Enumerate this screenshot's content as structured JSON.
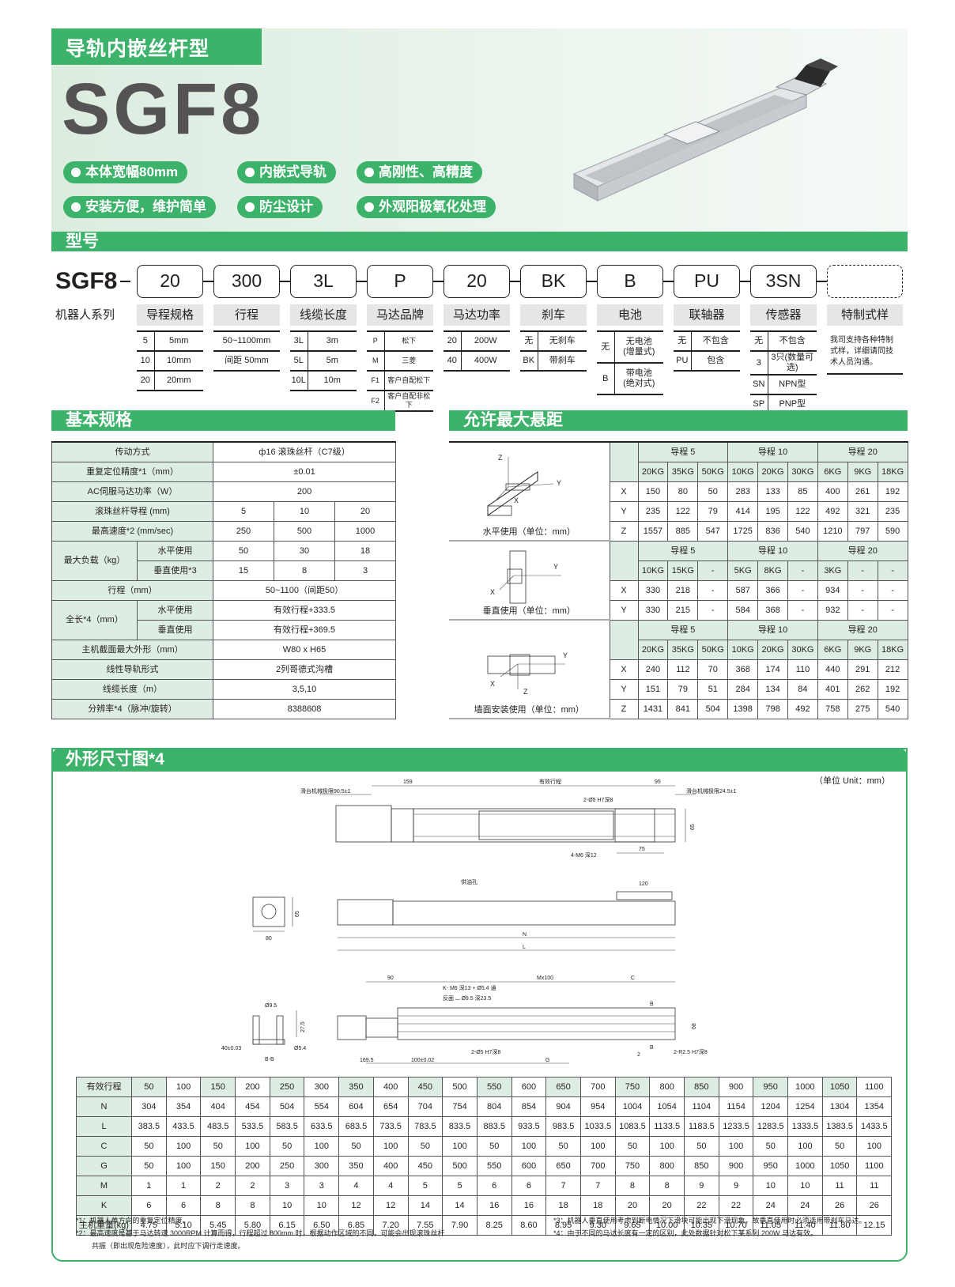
{
  "header": {
    "series_tag": "导轨内嵌丝杆型",
    "model": "SGF8",
    "features": [
      "本体宽幅80mm",
      "内嵌式导轨",
      "高刚性、高精度",
      "安装方便，维护简单",
      "防尘设计",
      "外观阳极氧化处理"
    ]
  },
  "colors": {
    "accent": "#3cb26a",
    "light_bg": "#ddede3",
    "text": "#231f20"
  },
  "model_code": {
    "title": "型号",
    "prefix": "SGF8",
    "prefix_label": "机器人系列",
    "columns": [
      {
        "code": "20",
        "label": "导程规格",
        "options": [
          [
            "5",
            "5mm"
          ],
          [
            "10",
            "10mm"
          ],
          [
            "20",
            "20mm"
          ]
        ]
      },
      {
        "code": "300",
        "label": "行程",
        "options": [
          [
            "",
            "50~1100mm"
          ],
          [
            "",
            "间距 50mm"
          ]
        ]
      },
      {
        "code": "3L",
        "label": "线缆长度",
        "options": [
          [
            "3L",
            "3m"
          ],
          [
            "5L",
            "5m"
          ],
          [
            "10L",
            "10m"
          ]
        ]
      },
      {
        "code": "P",
        "label": "马达品牌",
        "options": [
          [
            "P",
            "松下"
          ],
          [
            "M",
            "三菱"
          ],
          [
            "F1",
            "客户自配松下"
          ],
          [
            "F2",
            "客户自配非松下"
          ]
        ]
      },
      {
        "code": "20",
        "label": "马达功率",
        "options": [
          [
            "20",
            "200W"
          ],
          [
            "40",
            "400W"
          ]
        ]
      },
      {
        "code": "BK",
        "label": "刹车",
        "options": [
          [
            "无",
            "无刹车"
          ],
          [
            "BK",
            "带刹车"
          ]
        ]
      },
      {
        "code": "B",
        "label": "电池",
        "options": [
          [
            "无",
            "无电池\n(增量式)"
          ],
          [
            "B",
            "带电池\n(绝对式)"
          ]
        ]
      },
      {
        "code": "PU",
        "label": "联轴器",
        "options": [
          [
            "无",
            "不包含"
          ],
          [
            "PU",
            "包含"
          ]
        ]
      },
      {
        "code": "3SN",
        "label": "传感器",
        "options": [
          [
            "无",
            "不包含"
          ],
          [
            "3",
            "3只(数量可选)"
          ],
          [
            "SN",
            "NPN型"
          ],
          [
            "SP",
            "PNP型"
          ]
        ]
      },
      {
        "code": "",
        "label": "特制式样",
        "note": "我司支持各种特制式样，详细请同技术人员沟通。"
      }
    ]
  },
  "basic_spec": {
    "title": "基本规格",
    "rows": [
      {
        "label": "传动方式",
        "value": "ф16 滚珠丝杆（C7级）"
      },
      {
        "label": "重复定位精度*1（mm）",
        "value": "±0.01"
      },
      {
        "label": "AC伺服马达功率（W）",
        "value": "200"
      },
      {
        "label": "滚珠丝杆导程 (mm)",
        "values": [
          "5",
          "10",
          "20"
        ]
      },
      {
        "label": "最高速度*2 (mm/sec)",
        "values": [
          "250",
          "500",
          "1000"
        ]
      },
      {
        "label": "最大负载（kg）",
        "sub": [
          {
            "label": "水平使用",
            "values": [
              "50",
              "30",
              "18"
            ]
          },
          {
            "label": "垂直使用*3",
            "values": [
              "15",
              "8",
              "3"
            ]
          }
        ]
      },
      {
        "label": "行程（mm）",
        "value": "50~1100（间距50）"
      },
      {
        "label": "全长*4（mm）",
        "sub": [
          {
            "label": "水平使用",
            "value": "有效行程+333.5"
          },
          {
            "label": "垂直使用",
            "value": "有效行程+369.5"
          }
        ]
      },
      {
        "label": "主机截面最大外形（mm）",
        "value": "W80 x H65"
      },
      {
        "label": "线性导轨形式",
        "value": "2列哥德式沟槽"
      },
      {
        "label": "线缆长度（m）",
        "value": "3,5,10"
      },
      {
        "label": "分辨率*4（脉冲/旋转）",
        "value": "8388608"
      }
    ]
  },
  "overhang": {
    "title": "允许最大悬距",
    "groups": [
      {
        "caption": "水平使用（单位：mm）",
        "axes_labels": [
          "Z",
          "Y",
          "X"
        ],
        "leads": [
          "导程 5",
          "导程 10",
          "导程 20"
        ],
        "loads": [
          "20KG",
          "35KG",
          "50KG",
          "10KG",
          "20KG",
          "30KG",
          "6KG",
          "9KG",
          "18KG"
        ],
        "rows": [
          [
            "X",
            "150",
            "80",
            "50",
            "283",
            "133",
            "85",
            "400",
            "261",
            "192"
          ],
          [
            "Y",
            "235",
            "122",
            "79",
            "414",
            "195",
            "122",
            "492",
            "321",
            "235"
          ],
          [
            "Z",
            "1557",
            "885",
            "547",
            "1725",
            "836",
            "540",
            "1210",
            "797",
            "590"
          ]
        ]
      },
      {
        "caption": "垂直使用（单位：mm）",
        "axes_labels": [
          "Y",
          "X"
        ],
        "leads": [
          "导程 5",
          "导程 10",
          "导程 20"
        ],
        "loads": [
          "10KG",
          "15KG",
          "-",
          "5KG",
          "8KG",
          "-",
          "3KG",
          "-",
          "-"
        ],
        "rows": [
          [
            "X",
            "330",
            "218",
            "-",
            "587",
            "366",
            "-",
            "934",
            "-",
            "-"
          ],
          [
            "Y",
            "330",
            "215",
            "-",
            "584",
            "368",
            "-",
            "932",
            "-",
            "-"
          ]
        ]
      },
      {
        "caption": "墙面安装使用（单位：mm）",
        "axes_labels": [
          "Y",
          "X",
          "Z"
        ],
        "leads": [
          "导程 5",
          "导程 10",
          "导程 20"
        ],
        "loads": [
          "20KG",
          "35KG",
          "50KG",
          "10KG",
          "20KG",
          "30KG",
          "6KG",
          "9KG",
          "18KG"
        ],
        "rows": [
          [
            "X",
            "240",
            "112",
            "70",
            "368",
            "174",
            "110",
            "440",
            "291",
            "212"
          ],
          [
            "Y",
            "151",
            "79",
            "51",
            "284",
            "134",
            "84",
            "401",
            "262",
            "192"
          ],
          [
            "Z",
            "1431",
            "841",
            "504",
            "1398",
            "798",
            "492",
            "758",
            "275",
            "540"
          ]
        ]
      }
    ]
  },
  "outline": {
    "title": "外形尺寸图*4",
    "unit": "（单位 Unit：mm）",
    "drawing_labels": {
      "top": [
        "滑台机械极限90.5±1",
        "159",
        "有效行程",
        "95",
        "滑台机械极限24.5±1",
        "2-Ø5 H7深8",
        "65",
        "4-M6 深12",
        "75"
      ],
      "side": [
        "65",
        "80",
        "供油孔",
        "120",
        "N",
        "L"
      ],
      "bottom": [
        "Ø9.5",
        "27.5",
        "40±0.03",
        "Ø5.4",
        "B-B",
        "90",
        "Mx100",
        "C",
        "K- M6 深13 + Ø5.4 通",
        "反面 ⌴ Ø9.5 深23.5",
        "B",
        "68",
        "B",
        "2-Ø5 H7深8",
        "2",
        "2-R2.5 H7深8",
        "169.5",
        "100±0.02",
        "G"
      ]
    },
    "table": {
      "rows": [
        {
          "label": "有效行程",
          "values": [
            "50",
            "100",
            "150",
            "200",
            "250",
            "300",
            "350",
            "400",
            "450",
            "500",
            "550",
            "600",
            "650",
            "700",
            "750",
            "800",
            "850",
            "900",
            "950",
            "1000",
            "1050",
            "1100"
          ]
        },
        {
          "label": "N",
          "values": [
            "304",
            "354",
            "404",
            "454",
            "504",
            "554",
            "604",
            "654",
            "704",
            "754",
            "804",
            "854",
            "904",
            "954",
            "1004",
            "1054",
            "1104",
            "1154",
            "1204",
            "1254",
            "1304",
            "1354"
          ]
        },
        {
          "label": "L",
          "values": [
            "383.5",
            "433.5",
            "483.5",
            "533.5",
            "583.5",
            "633.5",
            "683.5",
            "733.5",
            "783.5",
            "833.5",
            "883.5",
            "933.5",
            "983.5",
            "1033.5",
            "1083.5",
            "1133.5",
            "1183.5",
            "1233.5",
            "1283.5",
            "1333.5",
            "1383.5",
            "1433.5"
          ]
        },
        {
          "label": "C",
          "values": [
            "50",
            "100",
            "50",
            "100",
            "50",
            "100",
            "50",
            "100",
            "50",
            "100",
            "50",
            "100",
            "50",
            "100",
            "50",
            "100",
            "50",
            "100",
            "50",
            "100",
            "50",
            "100"
          ]
        },
        {
          "label": "G",
          "values": [
            "50",
            "100",
            "150",
            "200",
            "250",
            "300",
            "350",
            "400",
            "450",
            "500",
            "550",
            "600",
            "650",
            "700",
            "750",
            "800",
            "850",
            "900",
            "950",
            "1000",
            "1050",
            "1100"
          ]
        },
        {
          "label": "M",
          "values": [
            "1",
            "1",
            "2",
            "2",
            "3",
            "3",
            "4",
            "4",
            "5",
            "5",
            "6",
            "6",
            "7",
            "7",
            "8",
            "8",
            "9",
            "9",
            "10",
            "10",
            "11",
            "11"
          ]
        },
        {
          "label": "K",
          "values": [
            "6",
            "6",
            "8",
            "8",
            "10",
            "10",
            "12",
            "12",
            "14",
            "14",
            "16",
            "16",
            "18",
            "18",
            "20",
            "20",
            "22",
            "22",
            "24",
            "24",
            "26",
            "26"
          ]
        },
        {
          "label": "主机重量(kg)",
          "values": [
            "4.75",
            "5.10",
            "5.45",
            "5.80",
            "6.15",
            "6.50",
            "6.85",
            "7.20",
            "7.55",
            "7.90",
            "8.25",
            "8.60",
            "8.95",
            "9.30",
            "9.65",
            "10.00",
            "10.35",
            "10.70",
            "11.05",
            "11.40",
            "11.80",
            "12.15"
          ]
        }
      ]
    },
    "notes": [
      "*1：机器人单方向的重复定位精度。",
      "*2：最高速度是基于马达转速 3000RPM 计算而得，行程超过 800mm 时，根据动作区域的不同，可能会出现滚珠丝杆",
      "共振（即出现危险速度），此时应下调行走速度。",
      "*3：机器人垂直使用考虑到断电情况下滑块可能出现下滑现象，故垂直使用时必须选用带刹车马达。",
      "*4：由于不同的马达长度有一定的区别，此处数据针对松下某系列 200W 马达有效。"
    ]
  }
}
